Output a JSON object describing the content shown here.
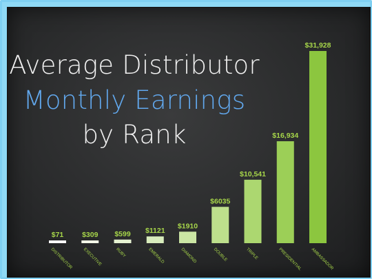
{
  "title": {
    "line1": "Average Distributor",
    "line2": "Monthly Earnings",
    "line3": "by Rank"
  },
  "colors": {
    "frame": "#8fd9f5",
    "board": "#2f3031",
    "title_white": "#f1f1f1",
    "title_blue": "#62a9ef",
    "value_label": "#a7d64a",
    "category_label": "#a7d64a"
  },
  "chart_data": {
    "type": "bar",
    "title": "Average Distributor Monthly Earnings by Rank",
    "categories": [
      "DISTRIBUTOR",
      "EXECUTIVE",
      "RUBY",
      "EMERALD",
      "DIAMOND",
      "DOUBLE",
      "TRIPLE",
      "PRESIDENTIAL",
      "AMBASSADOR"
    ],
    "values": [
      71,
      309,
      599,
      1121,
      1910,
      6035,
      10541,
      16934,
      31928
    ],
    "labels": [
      "$71",
      "$309",
      "$599",
      "$1121",
      "$1910",
      "$6035",
      "$10,541",
      "$16,934",
      "$31,928"
    ],
    "bar_colors": [
      "#ffffff",
      "#f3f8e8",
      "#e6f2d2",
      "#d8ecbc",
      "#cbe6a4",
      "#bddf8c",
      "#acd770",
      "#9ccf57",
      "#8cc63f"
    ],
    "xlabel": "",
    "ylabel": "",
    "ylim": [
      0,
      31928
    ],
    "grid": false,
    "legend": "none"
  }
}
